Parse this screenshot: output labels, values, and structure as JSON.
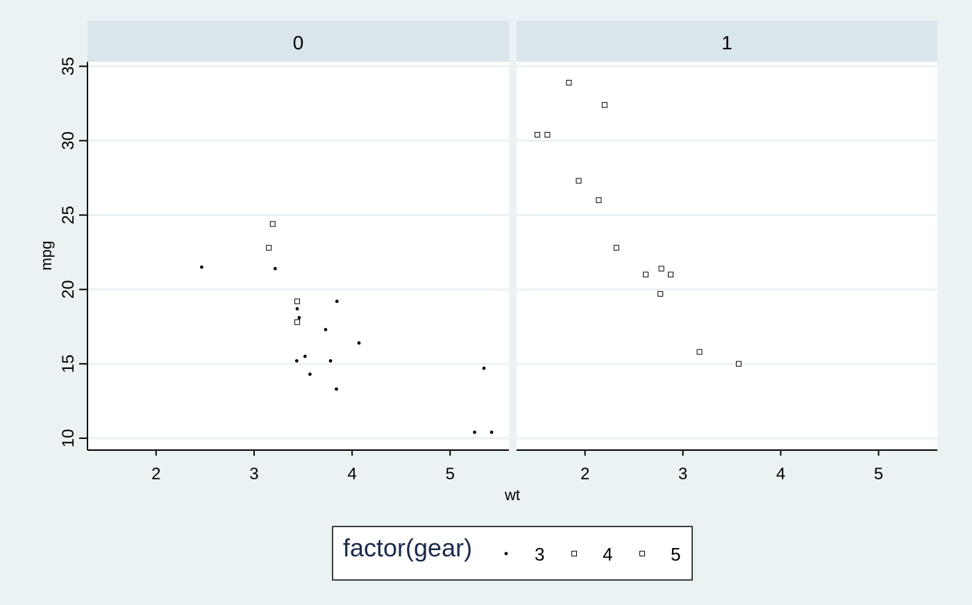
{
  "chart_data": {
    "type": "scatter",
    "xlabel": "wt",
    "ylabel": "mpg",
    "xlim": [
      1.3,
      5.6
    ],
    "ylim": [
      9.2,
      35.3
    ],
    "x_ticks": [
      2,
      3,
      4,
      5
    ],
    "y_ticks": [
      10,
      15,
      20,
      25,
      30,
      35
    ],
    "grid": "horizontal",
    "facets": [
      {
        "label": "0",
        "points": [
          {
            "x": 2.465,
            "y": 21.5,
            "gear": "3"
          },
          {
            "x": 3.215,
            "y": 21.4,
            "gear": "3"
          },
          {
            "x": 3.44,
            "y": 18.7,
            "gear": "3"
          },
          {
            "x": 3.46,
            "y": 18.1,
            "gear": "3"
          },
          {
            "x": 3.57,
            "y": 14.3,
            "gear": "3"
          },
          {
            "x": 4.07,
            "y": 16.4,
            "gear": "3"
          },
          {
            "x": 3.73,
            "y": 17.3,
            "gear": "3"
          },
          {
            "x": 3.78,
            "y": 15.2,
            "gear": "3"
          },
          {
            "x": 5.25,
            "y": 10.4,
            "gear": "3"
          },
          {
            "x": 5.424,
            "y": 10.4,
            "gear": "3"
          },
          {
            "x": 5.345,
            "y": 14.7,
            "gear": "3"
          },
          {
            "x": 3.52,
            "y": 15.5,
            "gear": "3"
          },
          {
            "x": 3.435,
            "y": 15.2,
            "gear": "3"
          },
          {
            "x": 3.84,
            "y": 13.3,
            "gear": "3"
          },
          {
            "x": 3.845,
            "y": 19.2,
            "gear": "3"
          },
          {
            "x": 3.19,
            "y": 24.4,
            "gear": "4"
          },
          {
            "x": 3.15,
            "y": 22.8,
            "gear": "4"
          },
          {
            "x": 3.44,
            "y": 19.2,
            "gear": "4"
          },
          {
            "x": 3.44,
            "y": 17.8,
            "gear": "4"
          }
        ]
      },
      {
        "label": "1",
        "points": [
          {
            "x": 2.62,
            "y": 21.0,
            "gear": "4"
          },
          {
            "x": 2.875,
            "y": 21.0,
            "gear": "4"
          },
          {
            "x": 2.32,
            "y": 22.8,
            "gear": "4"
          },
          {
            "x": 2.2,
            "y": 32.4,
            "gear": "4"
          },
          {
            "x": 1.615,
            "y": 30.4,
            "gear": "4"
          },
          {
            "x": 1.835,
            "y": 33.9,
            "gear": "4"
          },
          {
            "x": 1.935,
            "y": 27.3,
            "gear": "4"
          },
          {
            "x": 2.78,
            "y": 21.4,
            "gear": "4"
          },
          {
            "x": 2.14,
            "y": 26.0,
            "gear": "5"
          },
          {
            "x": 1.513,
            "y": 30.4,
            "gear": "5"
          },
          {
            "x": 3.17,
            "y": 15.8,
            "gear": "5"
          },
          {
            "x": 2.77,
            "y": 19.7,
            "gear": "5"
          },
          {
            "x": 3.57,
            "y": 15.0,
            "gear": "5"
          }
        ]
      }
    ],
    "legend": {
      "title": "factor(gear)",
      "placement": "bottom",
      "items": [
        {
          "label": "3",
          "shape": "dot"
        },
        {
          "label": "4",
          "shape": "square"
        },
        {
          "label": "5",
          "shape": "square"
        }
      ]
    },
    "colors": {
      "background": "#eaf2f3",
      "panel": "#ffffff",
      "strip": "#d9e6eb",
      "grid": "#eaf2f3",
      "axis": "#000000",
      "legend_title": "#1a2b4c"
    }
  }
}
